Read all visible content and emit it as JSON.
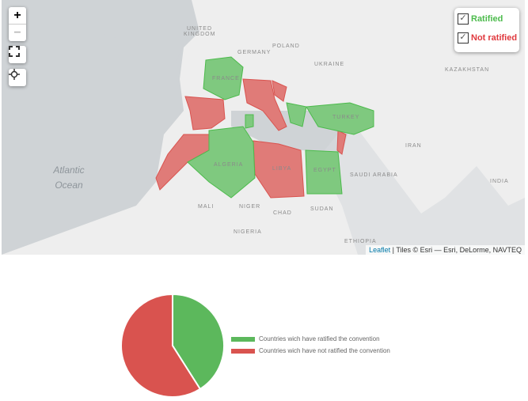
{
  "map": {
    "zoom_in": "+",
    "zoom_out": "−",
    "labels": {
      "uk": "UNITED KINGDOM",
      "germany": "GERMANY",
      "poland": "POLAND",
      "ukraine": "UKRAINE",
      "kazakhstan": "KAZAKHSTAN",
      "france": "FRANCE",
      "turkey": "TURKEY",
      "iran": "IRAN",
      "algeria": "ALGERIA",
      "libya": "LIBYA",
      "egypt": "EGYPT",
      "saudi": "SAUDI ARABIA",
      "india": "INDIA",
      "mali": "MALI",
      "niger": "NIGER",
      "chad": "CHAD",
      "sudan": "SUDAN",
      "nigeria": "NIGERIA",
      "ethiopia": "ETHIOPIA",
      "ocean": "Atlantic Ocean"
    },
    "layers": [
      {
        "label": "Ratified",
        "checked": true,
        "color": "#4cbb4c"
      },
      {
        "label": "Not ratified",
        "checked": true,
        "color": "#e0393e"
      }
    ],
    "attribution": {
      "leaflet": "Leaflet",
      "tiles": " | Tiles © Esri — Esri, DeLorme, NAVTEQ"
    },
    "icons": [
      "fullscreen-icon",
      "locate-icon"
    ]
  },
  "chart_data": {
    "type": "pie",
    "categories": [
      "Countries wich have ratified the convention",
      "Countries wich have not ratified the convention"
    ],
    "values": [
      41,
      59
    ],
    "colors": [
      "#5cb85c",
      "#d9534f"
    ],
    "legend": "right"
  }
}
